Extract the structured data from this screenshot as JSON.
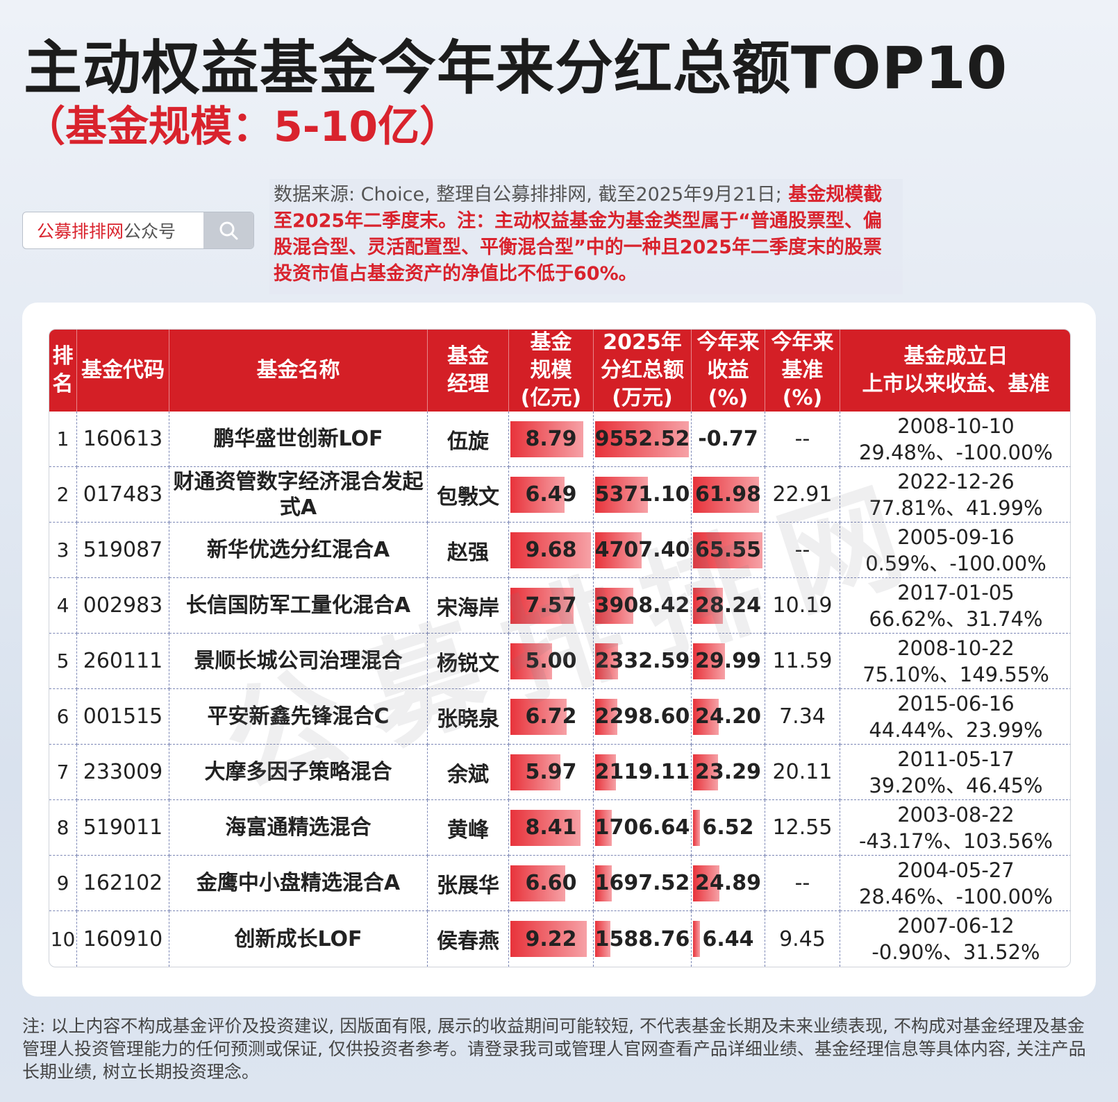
{
  "title": "主动权益基金今年来分红总额TOP10",
  "subtitle": "（基金规模：5-10亿）",
  "search": {
    "brand": "公募排排网",
    "label": "公众号"
  },
  "note": {
    "source": "数据来源: Choice, 整理自公募排排网, 截至2025年9月21日;",
    "desc": "基金规模截至2025年二季度末。注：主动权益基金为基金类型属于“普通股票型、偏股混合型、灵活配置型、平衡混合型”中的一种且2025年二季度末的股票投资市值占基金资产的净值比不低于60%。"
  },
  "headers": [
    "排名",
    "基金代码",
    "基金名称",
    "基金经理",
    "基金规模(亿元)",
    "2025年分红总额(万元)",
    "今年来收益(%)",
    "今年来基准(%)",
    "基金成立日上市以来收益、基准"
  ],
  "header_lines": {
    "rank": [
      "排",
      "名"
    ],
    "manager": [
      "基金",
      "经理"
    ],
    "scale": [
      "基金",
      "规模",
      "(亿元)"
    ],
    "div": [
      "2025年",
      "分红总额",
      "(万元)"
    ],
    "ret": [
      "今年来",
      "收益",
      "(%)"
    ],
    "bench": [
      "今年来",
      "基准",
      "(%)"
    ],
    "est": [
      "基金成立日",
      "上市以来收益、基准"
    ]
  },
  "rows": [
    {
      "rank": "1",
      "code": "160613",
      "name": "鹏华盛世创新LOF",
      "manager": "伍旋",
      "scale": "8.79",
      "dividend": "9552.52",
      "ret": "-0.77",
      "bench": "--",
      "date": "2008-10-10",
      "since": "29.48%、-100.00%"
    },
    {
      "rank": "2",
      "code": "017483",
      "name": "财通资管数字经济混合发起式A",
      "manager": "包斅文",
      "scale": "6.49",
      "dividend": "5371.10",
      "ret": "61.98",
      "bench": "22.91",
      "date": "2022-12-26",
      "since": "77.81%、41.99%"
    },
    {
      "rank": "3",
      "code": "519087",
      "name": "新华优选分红混合A",
      "manager": "赵强",
      "scale": "9.68",
      "dividend": "4707.40",
      "ret": "65.55",
      "bench": "--",
      "date": "2005-09-16",
      "since": "0.59%、-100.00%"
    },
    {
      "rank": "4",
      "code": "002983",
      "name": "长信国防军工量化混合A",
      "manager": "宋海岸",
      "scale": "7.57",
      "dividend": "3908.42",
      "ret": "28.24",
      "bench": "10.19",
      "date": "2017-01-05",
      "since": "66.62%、31.74%"
    },
    {
      "rank": "5",
      "code": "260111",
      "name": "景顺长城公司治理混合",
      "manager": "杨锐文",
      "scale": "5.00",
      "dividend": "2332.59",
      "ret": "29.99",
      "bench": "11.59",
      "date": "2008-10-22",
      "since": "75.10%、149.55%"
    },
    {
      "rank": "6",
      "code": "001515",
      "name": "平安新鑫先锋混合C",
      "manager": "张晓泉",
      "scale": "6.72",
      "dividend": "2298.60",
      "ret": "24.20",
      "bench": "7.34",
      "date": "2015-06-16",
      "since": "44.44%、23.99%"
    },
    {
      "rank": "7",
      "code": "233009",
      "name": "大摩多因子策略混合",
      "manager": "余斌",
      "scale": "5.97",
      "dividend": "2119.11",
      "ret": "23.29",
      "bench": "20.11",
      "date": "2011-05-17",
      "since": "39.20%、46.45%"
    },
    {
      "rank": "8",
      "code": "519011",
      "name": "海富通精选混合",
      "manager": "黄峰",
      "scale": "8.41",
      "dividend": "1706.64",
      "ret": "6.52",
      "bench": "12.55",
      "date": "2003-08-22",
      "since": "-43.17%、103.56%"
    },
    {
      "rank": "9",
      "code": "162102",
      "name": "金鹰中小盘精选混合A",
      "manager": "张展华",
      "scale": "6.60",
      "dividend": "1697.52",
      "ret": "24.89",
      "bench": "--",
      "date": "2004-05-27",
      "since": "28.46%、-100.00%"
    },
    {
      "rank": "10",
      "code": "160910",
      "name": "创新成长LOF",
      "manager": "侯春燕",
      "scale": "9.22",
      "dividend": "1588.76",
      "ret": "6.44",
      "bench": "9.45",
      "date": "2007-06-12",
      "since": "-0.90%、31.52%"
    }
  ],
  "watermark": "公募排排网",
  "footer": "注: 以上内容不构成基金评价及投资建议, 因版面有限, 展示的收益期间可能较短, 不代表基金长期及未来业绩表现, 不构成对基金经理及基金管理人投资管理能力的任何预测或保证, 仅供投资者参考。请登录我司或管理人官网查看产品详细业绩、基金经理信息等具体内容, 关注产品长期业绩, 树立长期投资理念。",
  "colors": {
    "accent": "#d41f26",
    "bar": "#e8333b"
  }
}
